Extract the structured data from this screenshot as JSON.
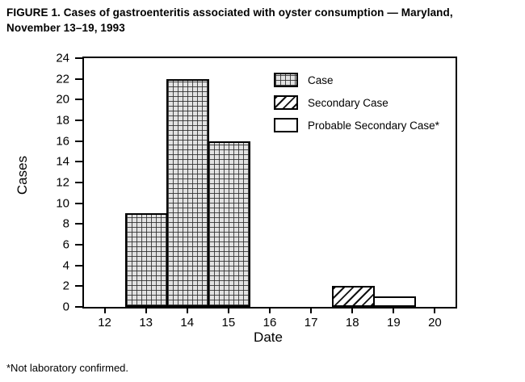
{
  "figure": {
    "title": "FIGURE 1. Cases of gastroenteritis associated with oyster consumption — Maryland, November 13–19, 1993",
    "footnote": "*Not laboratory confirmed."
  },
  "chart_data": {
    "type": "bar",
    "title": "FIGURE 1. Cases of gastroenteritis associated with oyster consumption — Maryland, November 13–19, 1993",
    "xlabel": "Date",
    "ylabel": "Cases",
    "categories": [
      "12",
      "13",
      "14",
      "15",
      "16",
      "17",
      "18",
      "19",
      "20"
    ],
    "series": [
      {
        "name": "Case",
        "pattern": "crosshatch",
        "values": [
          0,
          9,
          22,
          16,
          0,
          0,
          0,
          0,
          0
        ]
      },
      {
        "name": "Secondary Case",
        "pattern": "diagonal",
        "values": [
          0,
          0,
          0,
          0,
          0,
          0,
          2,
          0,
          0
        ]
      },
      {
        "name": "Probable Secondary Case*",
        "pattern": "plain",
        "values": [
          0,
          0,
          0,
          0,
          0,
          0,
          0,
          1,
          0
        ]
      }
    ],
    "ylim": [
      0,
      24
    ],
    "ytick_step": 2,
    "grid": false,
    "legend_position": "top-right-inside",
    "bar_outline_color": "#000000",
    "plot_border_color": "#000000"
  }
}
